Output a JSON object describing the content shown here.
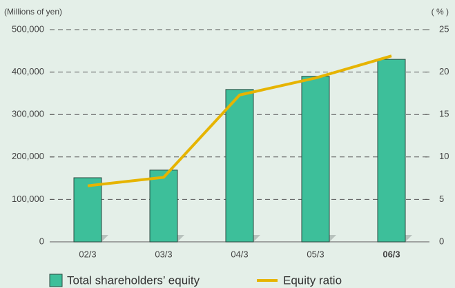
{
  "chart_data": {
    "type": "bar",
    "categories": [
      "02/3",
      "03/3",
      "04/3",
      "05/3",
      "06/3"
    ],
    "y_label": "(Millions of yen)",
    "y2_label": "( % )",
    "series": [
      {
        "name": "Total shareholders’ equity",
        "color": "#3dbf9a",
        "values": [
          151000,
          169000,
          359000,
          390000,
          430000
        ]
      },
      {
        "name": "Equity ratio",
        "color": "#e6b400",
        "type": "line",
        "axis": "y2",
        "values": [
          6.6,
          7.6,
          17.3,
          19.3,
          21.9
        ]
      }
    ],
    "ylim": [
      0,
      500000
    ],
    "yticks": [
      0,
      {
        "value": 100000,
        "label": "100,000"
      },
      {
        "value": 200000,
        "label": "200,000"
      },
      {
        "value": 300000,
        "label": "300,000"
      },
      {
        "value": 400000,
        "label": "400,000"
      },
      {
        "value": 500000,
        "label": "500,000"
      }
    ],
    "y2lim": [
      0,
      25
    ],
    "y2ticks": [
      0,
      5,
      10,
      15,
      20,
      25
    ],
    "grid": true
  }
}
